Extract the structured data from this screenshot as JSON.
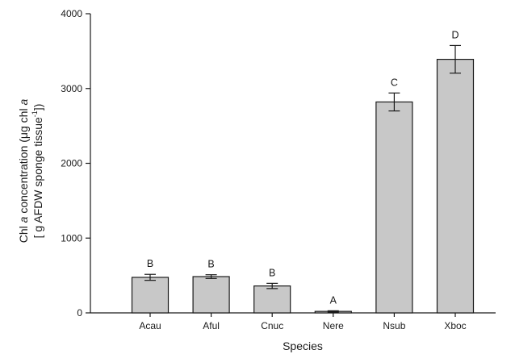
{
  "chart_data": {
    "type": "bar",
    "categories": [
      "Acau",
      "Aful",
      "Cnuc",
      "Nere",
      "Nsub",
      "Xboc"
    ],
    "values": [
      475,
      485,
      360,
      20,
      2820,
      3390
    ],
    "errors": [
      40,
      25,
      35,
      8,
      120,
      185
    ],
    "letters": [
      "B",
      "B",
      "B",
      "A",
      "C",
      "D"
    ],
    "xlabel": "Species",
    "ylabel_line1_parts": [
      "Chl ",
      "a",
      " concentration (",
      "μ",
      "g chl ",
      "a"
    ],
    "ylabel_line2_parts": [
      "[ g AFDW sponge tissue",
      "-1",
      "])"
    ],
    "ylim": [
      0,
      4000
    ],
    "yticks": [
      0,
      1000,
      2000,
      3000,
      4000
    ],
    "grid": false,
    "colors": {
      "bar_fill": "#c8c8c8",
      "bar_stroke": "#1a1a1a"
    }
  }
}
